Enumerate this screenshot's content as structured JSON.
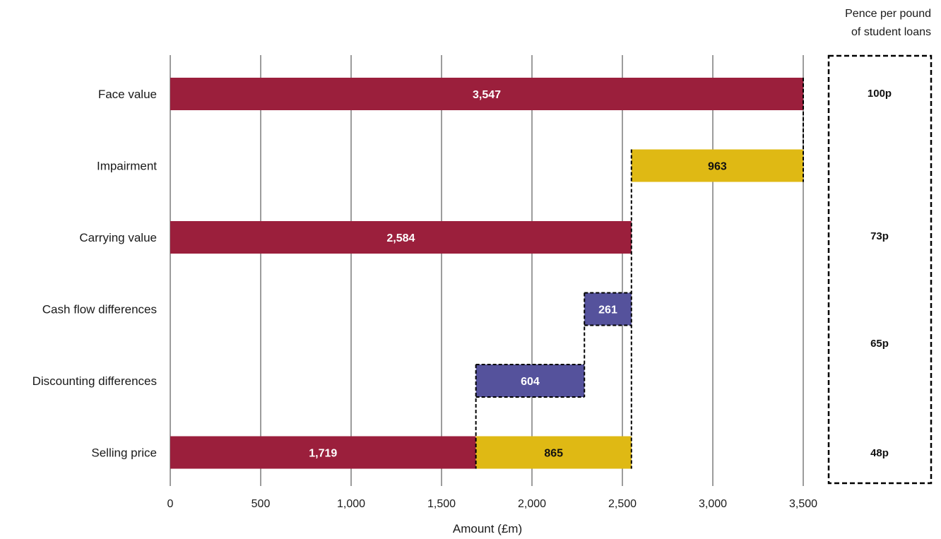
{
  "chart_data": {
    "type": "bar",
    "subtype": "waterfall-horizontal",
    "categories": [
      "Face value",
      "Impairment",
      "Carrying value",
      "Cash flow differences",
      "Discounting differences",
      "Selling price"
    ],
    "segments": [
      {
        "category": "Face value",
        "start": 0,
        "end": 3500,
        "value_label": "3,547",
        "color": "#9b1f3c"
      },
      {
        "category": "Impairment",
        "start": 2550,
        "end": 3500,
        "value_label": "963",
        "color": "#dfb914"
      },
      {
        "category": "Carrying value",
        "start": 0,
        "end": 2550,
        "value_label": "2,584",
        "color": "#9b1f3c"
      },
      {
        "category": "Cash flow differences",
        "start": 2290,
        "end": 2550,
        "value_label": "261",
        "color": "#55529c"
      },
      {
        "category": "Discounting differences",
        "start": 1690,
        "end": 2290,
        "value_label": "604",
        "color": "#55529c"
      },
      {
        "category": "Selling price",
        "start": 0,
        "end": 1690,
        "value_label": "1,719",
        "color": "#9b1f3c"
      },
      {
        "category": "Selling price",
        "start": 1690,
        "end": 2550,
        "value_label": "865",
        "color": "#dfb914"
      }
    ],
    "xlabel": "Amount (£m)",
    "xlim": [
      0,
      3500
    ],
    "xticks": [
      0,
      500,
      1000,
      1500,
      2000,
      2500,
      3000,
      3500
    ],
    "xtick_labels": [
      "0",
      "500",
      "1,000",
      "1,500",
      "2,000",
      "2,500",
      "3,000",
      "3,500"
    ],
    "grid": "vertical",
    "pence_panel": {
      "header_lines": [
        "Pence per pound",
        "of student loans"
      ],
      "entries": [
        {
          "label": "100p",
          "align_with": "Face value"
        },
        {
          "label": "73p",
          "align_with": "Carrying value"
        },
        {
          "label": "65p",
          "align_with": "between Cash flow differences and Discounting differences"
        },
        {
          "label": "48p",
          "align_with": "Selling price"
        }
      ]
    },
    "colors": {
      "bar_primary": "#9b1f3c",
      "bar_yellow": "#dfb914",
      "bar_purple": "#55529c"
    }
  }
}
